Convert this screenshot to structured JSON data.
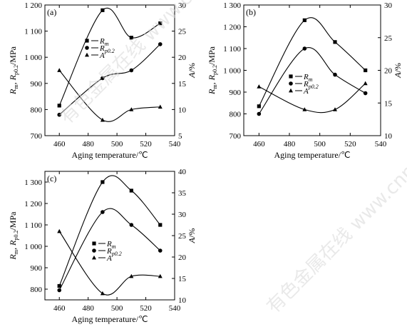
{
  "watermark": "有色金属在线 www.cnnmol.com",
  "chart_data": [
    {
      "type": "line",
      "panel": "(a)",
      "xlabel": "Aging temperature/℃",
      "ylabel_left": "R_m, R_p0.2/MPa",
      "ylabel_right": "A/%",
      "xlim": [
        450,
        540
      ],
      "xticks": [
        460,
        480,
        500,
        520,
        540
      ],
      "ylim_left": [
        700,
        1200
      ],
      "yticks_left": [
        700,
        800,
        900,
        1000,
        1100,
        1200
      ],
      "ylim_right": [
        5,
        30
      ],
      "yticks_right": [
        5,
        10,
        15,
        20,
        25,
        30
      ],
      "grid": false,
      "legend_position": "upper-middle",
      "series": [
        {
          "name": "R_m",
          "marker": "square",
          "axis": "left",
          "x": [
            460,
            490,
            510,
            530
          ],
          "y": [
            815,
            1180,
            1075,
            1130
          ]
        },
        {
          "name": "R_p0.2",
          "marker": "circle",
          "axis": "left",
          "x": [
            460,
            490,
            510,
            530
          ],
          "y": [
            780,
            920,
            950,
            1050
          ]
        },
        {
          "name": "A",
          "marker": "triangle",
          "axis": "right",
          "x": [
            460,
            490,
            510,
            530
          ],
          "y": [
            17.5,
            8,
            10,
            10.5
          ]
        }
      ]
    },
    {
      "type": "line",
      "panel": "(b)",
      "xlabel": "Aging temperature/℃",
      "ylabel_left": "R_m, R_p0.2/MPa",
      "ylabel_right": "A/%",
      "xlim": [
        450,
        540
      ],
      "xticks": [
        460,
        480,
        500,
        520,
        540
      ],
      "ylim_left": [
        700,
        1300
      ],
      "yticks_left": [
        700,
        800,
        900,
        1000,
        1100,
        1200,
        1300
      ],
      "ylim_right": [
        10,
        30
      ],
      "yticks_right": [
        10,
        15,
        20,
        25,
        30
      ],
      "grid": false,
      "legend_position": "center-left",
      "series": [
        {
          "name": "R_m",
          "marker": "square",
          "axis": "left",
          "x": [
            460,
            490,
            510,
            530
          ],
          "y": [
            835,
            1230,
            1130,
            1000
          ]
        },
        {
          "name": "R_p0.2",
          "marker": "circle",
          "axis": "left",
          "x": [
            460,
            490,
            510,
            530
          ],
          "y": [
            800,
            1100,
            980,
            895
          ]
        },
        {
          "name": "A",
          "marker": "triangle",
          "axis": "right",
          "x": [
            460,
            490,
            510,
            530
          ],
          "y": [
            17.5,
            14,
            14,
            18
          ]
        }
      ]
    },
    {
      "type": "line",
      "panel": "(c)",
      "xlabel": "Aging temperature/℃",
      "ylabel_left": "R_m, R_p0.2/MPa",
      "ylabel_right": "A/%",
      "xlim": [
        450,
        540
      ],
      "xticks": [
        460,
        480,
        500,
        520,
        540
      ],
      "ylim_left": [
        750,
        1350
      ],
      "yticks_left": [
        800,
        900,
        1000,
        1100,
        1200,
        1300
      ],
      "ylim_right": [
        10,
        40
      ],
      "yticks_right": [
        10,
        15,
        20,
        25,
        30,
        35,
        40
      ],
      "grid": false,
      "legend_position": "center-right",
      "series": [
        {
          "name": "R_m",
          "marker": "square",
          "axis": "left",
          "x": [
            460,
            490,
            510,
            530
          ],
          "y": [
            815,
            1300,
            1260,
            1100
          ]
        },
        {
          "name": "R_p0.2",
          "marker": "circle",
          "axis": "left",
          "x": [
            460,
            490,
            510,
            530
          ],
          "y": [
            795,
            1160,
            1100,
            980
          ]
        },
        {
          "name": "A",
          "marker": "triangle",
          "axis": "right",
          "x": [
            460,
            490,
            510,
            530
          ],
          "y": [
            26,
            11.5,
            15.5,
            15.5
          ]
        }
      ]
    }
  ]
}
